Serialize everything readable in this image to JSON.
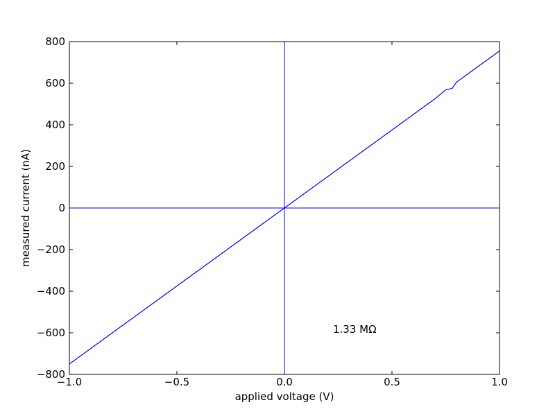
{
  "chart_data": {
    "type": "line",
    "xlabel": "applied voltage (V)",
    "ylabel": "measured current (nA)",
    "annotation": "1.33 MΩ",
    "x": [
      -1.0,
      -0.9,
      -0.8,
      -0.7,
      -0.6,
      -0.5,
      -0.4,
      -0.3,
      -0.2,
      -0.1,
      0.0,
      0.1,
      0.2,
      0.3,
      0.4,
      0.5,
      0.6,
      0.7,
      0.75,
      0.78,
      0.8,
      0.9,
      1.0
    ],
    "values": [
      -750,
      -675,
      -600,
      -525,
      -450,
      -375,
      -300,
      -225,
      -150,
      -75,
      0,
      75,
      150,
      225,
      300,
      375,
      450,
      525,
      568,
      575,
      605,
      680,
      755
    ],
    "color": "#0000ff",
    "hlines": [
      0
    ],
    "vlines": [
      0
    ],
    "xlim": [
      -1.0,
      1.0
    ],
    "xticks": [
      {
        "value": -1.0,
        "label": "−1.0"
      },
      {
        "value": -0.5,
        "label": "−0.5"
      },
      {
        "value": 0.0,
        "label": "0.0"
      },
      {
        "value": 0.5,
        "label": "0.5"
      },
      {
        "value": 1.0,
        "label": "1.0"
      }
    ],
    "ylim": [
      -800,
      800
    ],
    "yticks": [
      {
        "value": -800,
        "label": "−800"
      },
      {
        "value": -600,
        "label": "−600"
      },
      {
        "value": -400,
        "label": "−400"
      },
      {
        "value": -200,
        "label": "−200"
      },
      0,
      200,
      400,
      600,
      800
    ],
    "grid": false
  }
}
